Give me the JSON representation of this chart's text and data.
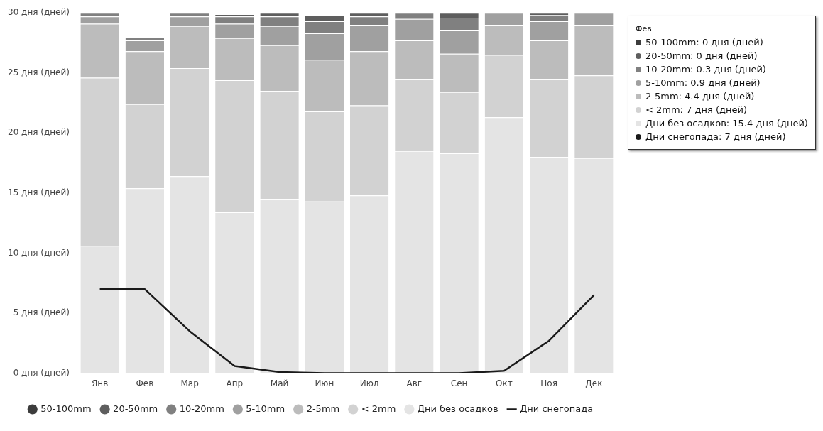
{
  "chart_data": {
    "type": "bar",
    "stacked": true,
    "categories": [
      "Янв",
      "Фев",
      "Мар",
      "Апр",
      "Май",
      "Июн",
      "Июл",
      "Авг",
      "Сен",
      "Окт",
      "Ноя",
      "Дек"
    ],
    "series": [
      {
        "name": "Дни без осадков",
        "color": "#e4e4e4",
        "values": [
          10.6,
          15.4,
          16.4,
          13.4,
          14.5,
          14.3,
          14.8,
          18.5,
          18.3,
          21.3,
          18,
          17.9
        ]
      },
      {
        "name": "< 2mm",
        "color": "#d2d2d2",
        "values": [
          14,
          7,
          9,
          11,
          9,
          7.5,
          7.5,
          6,
          5.1,
          5.2,
          6.5,
          6.9
        ]
      },
      {
        "name": "2-5mm",
        "color": "#bcbcbc",
        "values": [
          4.5,
          4.4,
          3.5,
          3.5,
          3.8,
          4.3,
          4.5,
          3.2,
          3.2,
          2.5,
          3.2,
          4.2
        ]
      },
      {
        "name": "5-10mm",
        "color": "#a0a0a0",
        "values": [
          0.6,
          0.9,
          0.8,
          1.2,
          1.6,
          2.2,
          2.2,
          1.8,
          2,
          1,
          1.6,
          1
        ]
      },
      {
        "name": "10-20mm",
        "color": "#808080",
        "values": [
          0.3,
          0.3,
          0.3,
          0.6,
          0.8,
          1,
          0.7,
          0.5,
          1,
          0,
          0.5,
          0
        ]
      },
      {
        "name": "20-50mm",
        "color": "#5e5e5e",
        "values": [
          0,
          0,
          0,
          0.2,
          0.3,
          0.5,
          0.3,
          0,
          0.4,
          0,
          0.2,
          0
        ]
      },
      {
        "name": "50-100mm",
        "color": "#3c3c3c",
        "values": [
          0,
          0,
          0,
          0,
          0,
          0,
          0,
          0,
          0,
          0,
          0,
          0
        ]
      },
      {
        "name": "Дни снегопада",
        "type": "line",
        "color": "#1a1a1a",
        "values": [
          7,
          7,
          3.5,
          0.6,
          0.1,
          0,
          0,
          0,
          0,
          0.2,
          2.7,
          6.5
        ]
      }
    ],
    "ylim": [
      0,
      30
    ],
    "yticks": [
      {
        "value": 0,
        "label": "0 дня (дней)"
      },
      {
        "value": 5,
        "label": "5 дня (дней)"
      },
      {
        "value": 10,
        "label": "10 дня (дней)"
      },
      {
        "value": 15,
        "label": "15 дня (дней)"
      },
      {
        "value": 20,
        "label": "20 дня (дней)"
      },
      {
        "value": 25,
        "label": "25 дня (дней)"
      },
      {
        "value": 30,
        "label": "30 дня (дней)"
      }
    ],
    "grid": false,
    "legend": "bottom",
    "marker": "none",
    "line_style": "solid",
    "annotations": [
      "Фев",
      "50-100mm: 0 дня (дней)",
      "20-50mm: 0 дня (дней)",
      "10-20mm: 0.3 дня (дней)",
      "5-10mm: 0.9 дня (дней)",
      "2-5mm: 4.4 дня (дней)",
      "< 2mm: 7 дня (дней)",
      "Дни без осадков: 15.4 дня (дней)",
      "Дни снегопада: 7 дня (дней)"
    ]
  }
}
